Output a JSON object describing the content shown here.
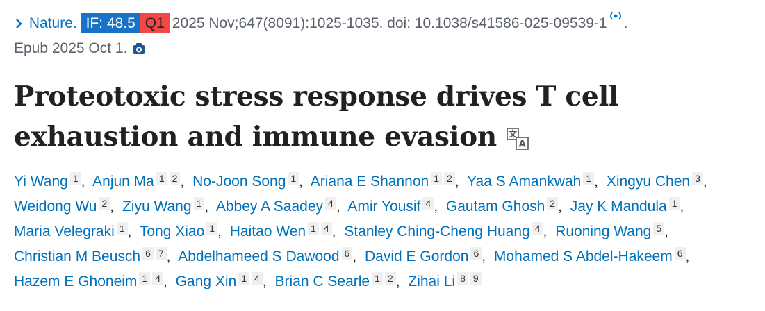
{
  "citation": {
    "journal": "Nature.",
    "impact_factor": "IF: 48.5",
    "quartile": "Q1",
    "details": "2025 Nov;647(8091):1025-1035. doi: 10.1038/s41586-025-09539-1",
    "end": ".",
    "epub": "Epub 2025 Oct 1."
  },
  "title": "Proteotoxic stress response drives T cell exhaustion and immune evasion",
  "separator": ",",
  "authors": [
    {
      "name": "Yi Wang",
      "affiliations": [
        1
      ]
    },
    {
      "name": "Anjun Ma",
      "affiliations": [
        1,
        2
      ]
    },
    {
      "name": "No-Joon Song",
      "affiliations": [
        1
      ]
    },
    {
      "name": "Ariana E Shannon",
      "affiliations": [
        1,
        2
      ]
    },
    {
      "name": "Yaa S Amankwah",
      "affiliations": [
        1
      ]
    },
    {
      "name": "Xingyu Chen",
      "affiliations": [
        3
      ]
    },
    {
      "name": "Weidong Wu",
      "affiliations": [
        2
      ]
    },
    {
      "name": "Ziyu Wang",
      "affiliations": [
        1
      ]
    },
    {
      "name": "Abbey A Saadey",
      "affiliations": [
        4
      ]
    },
    {
      "name": "Amir Yousif",
      "affiliations": [
        4
      ]
    },
    {
      "name": "Gautam Ghosh",
      "affiliations": [
        2
      ]
    },
    {
      "name": "Jay K Mandula",
      "affiliations": [
        1
      ]
    },
    {
      "name": "Maria Velegraki",
      "affiliations": [
        1
      ]
    },
    {
      "name": "Tong Xiao",
      "affiliations": [
        1
      ]
    },
    {
      "name": "Haitao Wen",
      "affiliations": [
        1,
        4
      ]
    },
    {
      "name": "Stanley Ching-Cheng Huang",
      "affiliations": [
        4
      ]
    },
    {
      "name": "Ruoning Wang",
      "affiliations": [
        5
      ]
    },
    {
      "name": "Christian M Beusch",
      "affiliations": [
        6,
        7
      ]
    },
    {
      "name": "Abdelhameed S Dawood",
      "affiliations": [
        6
      ]
    },
    {
      "name": "David E Gordon",
      "affiliations": [
        6
      ]
    },
    {
      "name": "Mohamed S Abdel-Hakeem",
      "affiliations": [
        6
      ]
    },
    {
      "name": "Hazem E Ghoneim",
      "affiliations": [
        1,
        4
      ]
    },
    {
      "name": "Gang Xin",
      "affiliations": [
        1,
        4
      ]
    },
    {
      "name": "Brian C Searle",
      "affiliations": [
        1,
        2
      ]
    },
    {
      "name": "Zihai Li",
      "affiliations": [
        8,
        9
      ]
    }
  ]
}
